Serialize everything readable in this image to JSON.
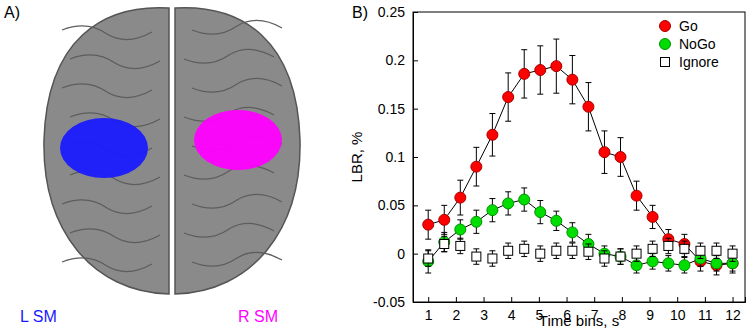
{
  "panel_a": {
    "label": "A)",
    "regions": [
      {
        "name": "L SM",
        "color": "#1a1aff"
      },
      {
        "name": "R SM",
        "color": "#ff00ff"
      }
    ]
  },
  "chart_data": {
    "type": "line",
    "title": "B)",
    "x_label": "Time bins, s",
    "y_label": "LBR, %",
    "x": [
      1,
      1.58,
      2.16,
      2.74,
      3.32,
      3.89,
      4.47,
      5.05,
      5.63,
      6.21,
      6.79,
      7.37,
      7.95,
      8.53,
      9.11,
      9.68,
      10.26,
      10.84,
      11.42,
      12
    ],
    "xlim": [
      0.45,
      12.45
    ],
    "xticks": [
      1,
      2,
      3,
      4,
      5,
      6,
      7,
      8,
      9,
      10,
      11,
      12
    ],
    "ylim": [
      -0.05,
      0.25
    ],
    "yticks": [
      -0.05,
      0,
      0.05,
      0.1,
      0.15,
      0.2,
      0.25
    ],
    "legend": "upper right",
    "series": [
      {
        "name": "Go",
        "color": "#ff0000",
        "marker": "circle",
        "line_style": "solid",
        "values": [
          0.03,
          0.035,
          0.058,
          0.09,
          0.123,
          0.162,
          0.186,
          0.19,
          0.194,
          0.18,
          0.152,
          0.105,
          0.1,
          0.06,
          0.038,
          0.015,
          0.01,
          -0.008,
          -0.012,
          -0.01
        ],
        "errors": [
          0.015,
          0.015,
          0.018,
          0.02,
          0.022,
          0.025,
          0.025,
          0.025,
          0.028,
          0.025,
          0.025,
          0.022,
          0.02,
          0.015,
          0.012,
          0.01,
          0.01,
          0.01,
          0.01,
          0.01
        ]
      },
      {
        "name": "NoGo",
        "color": "#00dd00",
        "marker": "circle",
        "line_style": "solid",
        "values": [
          -0.008,
          0.012,
          0.025,
          0.033,
          0.045,
          0.052,
          0.056,
          0.043,
          0.034,
          0.022,
          0.01,
          0.0,
          -0.003,
          -0.012,
          -0.008,
          -0.01,
          -0.012,
          -0.005,
          -0.01,
          -0.01
        ],
        "errors": [
          0.012,
          0.01,
          0.01,
          0.012,
          0.012,
          0.012,
          0.012,
          0.012,
          0.01,
          0.01,
          0.01,
          0.008,
          0.008,
          0.008,
          0.008,
          0.008,
          0.008,
          0.008,
          0.008,
          0.008
        ]
      },
      {
        "name": "Ignore",
        "color": "#ffffff",
        "marker": "square",
        "line_style": "none",
        "values": [
          -0.005,
          0.01,
          0.008,
          -0.003,
          -0.005,
          0.003,
          0.005,
          0.0,
          0.003,
          0.003,
          0.002,
          -0.005,
          -0.003,
          0.0,
          0.005,
          0.008,
          0.005,
          0.003,
          0.003,
          0.0
        ],
        "errors": [
          0.008,
          0.008,
          0.008,
          0.008,
          0.008,
          0.008,
          0.008,
          0.008,
          0.008,
          0.008,
          0.008,
          0.008,
          0.008,
          0.008,
          0.008,
          0.008,
          0.008,
          0.008,
          0.008,
          0.008
        ]
      }
    ]
  }
}
